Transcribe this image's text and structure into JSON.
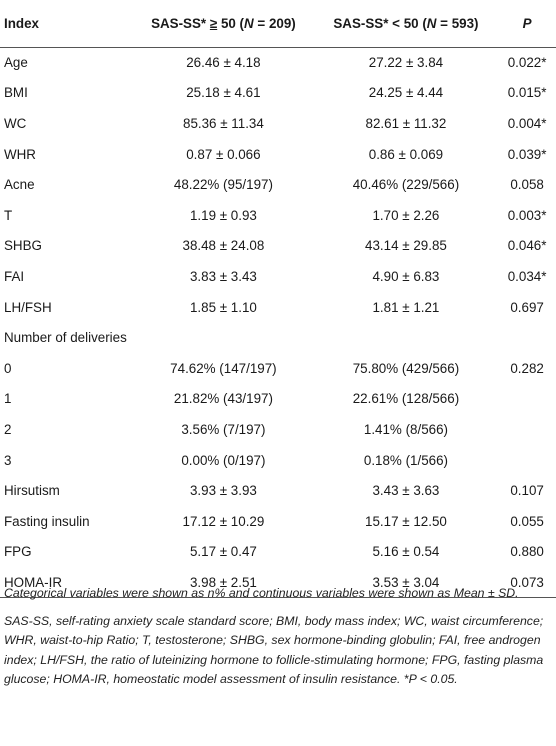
{
  "table": {
    "headers": {
      "index": "Index",
      "g1_prefix": "SAS-SS* ",
      "g1_op": "≥",
      "g1_num": " 50 (",
      "g1_n": "N",
      "g1_count": " = 209)",
      "g2_prefix": "SAS-SS* ",
      "g2_op": "<",
      "g2_num": " 50 (",
      "g2_n": "N",
      "g2_count": " = 593)",
      "p": "P"
    },
    "rows": [
      [
        "Age",
        "26.46 ± 4.18",
        "27.22 ± 3.84",
        "0.022*"
      ],
      [
        "BMI",
        "25.18 ± 4.61",
        "24.25 ± 4.44",
        "0.015*"
      ],
      [
        "WC",
        "85.36 ± 11.34",
        "82.61 ± 11.32",
        "0.004*"
      ],
      [
        "WHR",
        "0.87 ± 0.066",
        "0.86 ± 0.069",
        "0.039*"
      ],
      [
        "Acne",
        "48.22% (95/197)",
        "40.46% (229/566)",
        "0.058"
      ],
      [
        "T",
        "1.19 ± 0.93",
        "1.70 ± 2.26",
        "0.003*"
      ],
      [
        "SHBG",
        "38.48 ± 24.08",
        "43.14 ± 29.85",
        "0.046*"
      ],
      [
        "FAI",
        "3.83 ± 3.43",
        "4.90 ± 6.83",
        "0.034*"
      ],
      [
        "LH/FSH",
        "1.85 ± 1.10",
        "1.81 ± 1.21",
        "0.697"
      ],
      [
        "Number of deliveries",
        "",
        "",
        ""
      ],
      [
        "0",
        "74.62% (147/197)",
        "75.80% (429/566)",
        "0.282"
      ],
      [
        "1",
        "21.82% (43/197)",
        "22.61% (128/566)",
        ""
      ],
      [
        "2",
        "3.56% (7/197)",
        "1.41% (8/566)",
        ""
      ],
      [
        "3",
        "0.00% (0/197)",
        "0.18% (1/566)",
        ""
      ],
      [
        "Hirsutism",
        "3.93 ± 3.93",
        "3.43 ± 3.63",
        "0.107"
      ],
      [
        "Fasting insulin",
        "17.12 ± 10.29",
        "15.17 ± 12.50",
        "0.055"
      ],
      [
        "FPG",
        "5.17 ± 0.47",
        "5.16 ± 0.54",
        "0.880"
      ],
      [
        "HOMA-IR",
        "3.98 ± 2.51",
        "3.53 ± 3.04",
        "0.073"
      ]
    ]
  },
  "footnotes": [
    "Categorical variables were shown as n% and continuous variables were shown as Mean ± SD.",
    "SAS-SS, self-rating anxiety scale standard score; BMI, body mass index; WC, waist circumference; WHR, waist-to-hip Ratio; T, testosterone; SHBG, sex hormone-binding globulin; FAI, free androgen index; LH/FSH, the ratio of luteinizing hormone to follicle-stimulating hormone; FPG, fasting plasma glucose; HOMA-IR, homeostatic model assessment of insulin resistance. *P < 0.05."
  ]
}
